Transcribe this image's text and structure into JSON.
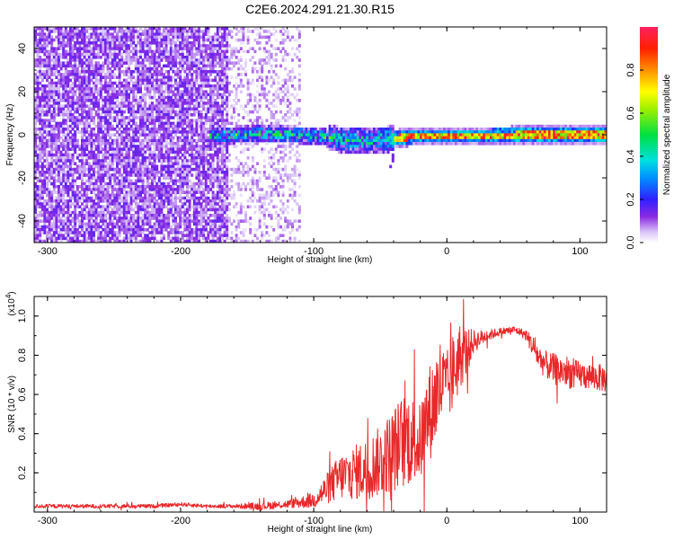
{
  "chart_data": [
    {
      "type": "heatmap",
      "title": "C2E6.2024.291.21.30.R15",
      "xlabel": "Height of straight line (km)",
      "ylabel": "Frequency (Hz)",
      "xlim": [
        -310,
        120
      ],
      "ylim": [
        -50,
        50
      ],
      "xticks": [
        -300,
        -200,
        -100,
        0,
        100
      ],
      "xtick_labels": [
        "-300",
        "-200",
        "-100",
        "0",
        "100"
      ],
      "yticks": [
        -40,
        -20,
        0,
        20,
        40
      ],
      "ytick_labels": [
        "-40",
        "-20",
        "0",
        "20",
        "40"
      ],
      "grid": false,
      "colorbar": {
        "label": "Normalized spectral amplitude",
        "range": [
          0,
          1
        ],
        "ticks": [
          0,
          0.2,
          0.4,
          0.6,
          0.8
        ],
        "tick_labels": [
          "0.0",
          "0.2",
          "0.4",
          "0.6",
          "0.8"
        ],
        "colormap": "rainbow: white/lavender (0) - violet - blue - cyan - green - yellow - orange - red - magenta (1)"
      },
      "regions": [
        {
          "x_range": [
            -310,
            -165
          ],
          "freq_range": [
            -50,
            50
          ],
          "amplitude": "low noise (0.05-0.20)"
        },
        {
          "x_range": [
            -165,
            -110
          ],
          "freq_range": [
            -50,
            50
          ],
          "amplitude": "sparse noise (0.02-0.10)"
        },
        {
          "x_range": [
            -180,
            -40
          ],
          "freq_range": [
            -8,
            8
          ],
          "amplitude": "scattered peaks (0.2-0.6)"
        },
        {
          "x_range": [
            -40,
            120
          ],
          "freq_range": [
            -4,
            4
          ],
          "amplitude": "strong band (0.5-1.0)"
        }
      ],
      "band_center": [
        {
          "x": -180,
          "y": 0
        },
        {
          "x": -150,
          "y": 1
        },
        {
          "x": -120,
          "y": 1
        },
        {
          "x": -100,
          "y": 0
        },
        {
          "x": -80,
          "y": -1.5
        },
        {
          "x": -60,
          "y": -2
        },
        {
          "x": -40,
          "y": -1
        },
        {
          "x": -20,
          "y": 0
        },
        {
          "x": 0,
          "y": 0
        },
        {
          "x": 50,
          "y": 0.5
        },
        {
          "x": 120,
          "y": 0.5
        }
      ]
    },
    {
      "type": "line",
      "xlabel": "Height of straight line (km)",
      "ylabel": "SNR (10 * v/v)",
      "y_multiplier": "(x10",
      "y_multiplier_exp": "4",
      "y_multiplier_close": ")",
      "xlim": [
        -310,
        120
      ],
      "ylim": [
        0,
        1.1
      ],
      "xticks": [
        -300,
        -200,
        -100,
        0,
        100
      ],
      "xtick_labels": [
        "-300",
        "-200",
        "-100",
        "0",
        "100"
      ],
      "yticks": [
        0.2,
        0.4,
        0.6,
        0.8,
        1.0
      ],
      "ytick_labels": [
        "0.2",
        "0.4",
        "0.6",
        "0.8",
        "1.0"
      ],
      "grid": false,
      "series": [
        {
          "color": "#e8282a",
          "x": [
            -310,
            -280,
            -250,
            -220,
            -200,
            -180,
            -160,
            -140,
            -120,
            -110,
            -100,
            -90,
            -80,
            -70,
            -60,
            -50,
            -40,
            -30,
            -20,
            -15,
            -10,
            -5,
            0,
            5,
            10,
            15,
            20,
            30,
            40,
            50,
            55,
            60,
            65,
            70,
            75,
            80,
            85,
            90,
            95,
            100,
            110,
            120
          ],
          "values": [
            0.03,
            0.03,
            0.03,
            0.03,
            0.04,
            0.03,
            0.03,
            0.03,
            0.04,
            0.05,
            0.06,
            0.12,
            0.18,
            0.2,
            0.22,
            0.26,
            0.32,
            0.38,
            0.35,
            0.48,
            0.55,
            0.65,
            0.62,
            0.72,
            0.8,
            0.82,
            0.87,
            0.9,
            0.92,
            0.93,
            0.92,
            0.9,
            0.84,
            0.78,
            0.75,
            0.73,
            0.72,
            0.72,
            0.7,
            0.7,
            0.69,
            0.68
          ],
          "spread": [
            0.01,
            0.01,
            0.01,
            0.01,
            0.01,
            0.01,
            0.01,
            0.02,
            0.02,
            0.03,
            0.04,
            0.08,
            0.12,
            0.14,
            0.16,
            0.18,
            0.22,
            0.25,
            0.2,
            0.25,
            0.25,
            0.25,
            0.2,
            0.2,
            0.18,
            0.12,
            0.06,
            0.03,
            0.02,
            0.02,
            0.02,
            0.03,
            0.06,
            0.07,
            0.07,
            0.08,
            0.08,
            0.08,
            0.08,
            0.07,
            0.07,
            0.07
          ]
        }
      ]
    }
  ]
}
